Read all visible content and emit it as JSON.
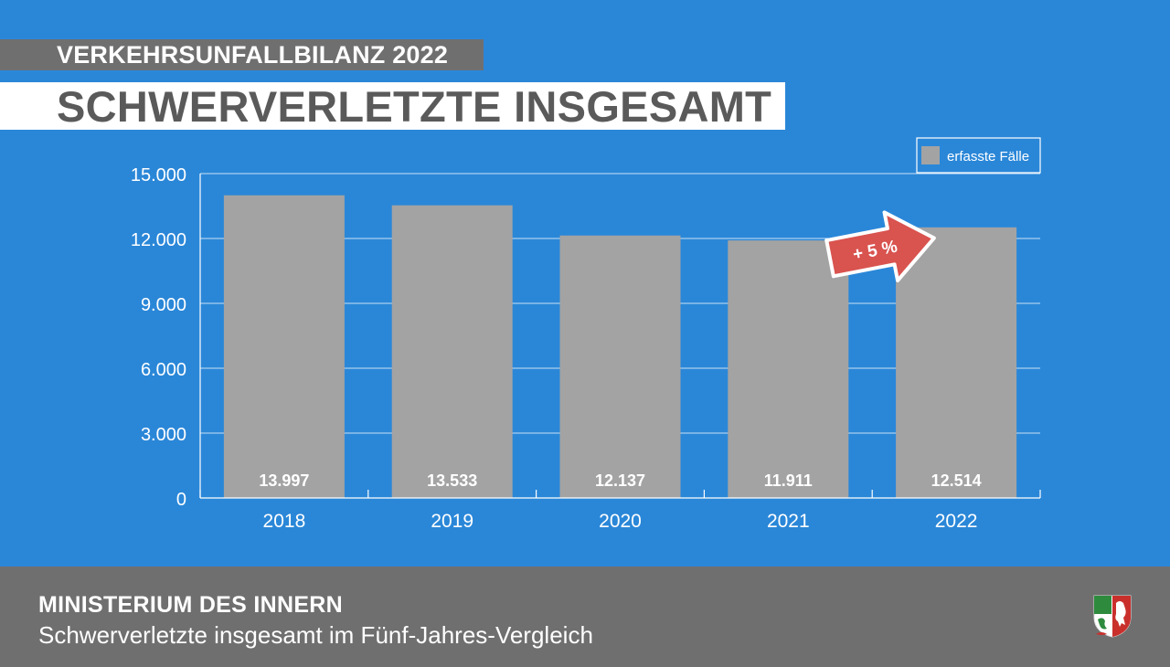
{
  "header": {
    "supertitle": "VERKEHRSUNFALLBILANZ 2022",
    "title": "SCHWERVERLETZTE INSGESAMT"
  },
  "footer": {
    "title": "MINISTERIUM DES INNERN",
    "subtitle": "Schwerverletzte insgesamt im Fünf-Jahres-Vergleich",
    "crest_icon": "nrw-coat-of-arms-icon"
  },
  "colors": {
    "background": "#2a87d8",
    "bar": "#a3a3a3",
    "band": "#6f6f6f",
    "arrow": "#d9534f"
  },
  "chart_data": {
    "type": "bar",
    "categories": [
      "2018",
      "2019",
      "2020",
      "2021",
      "2022"
    ],
    "series": [
      {
        "name": "erfasste Fälle",
        "values": [
          13997,
          13533,
          12137,
          11911,
          12514
        ]
      }
    ],
    "value_labels": [
      "13.997",
      "13.533",
      "12.137",
      "11.911",
      "12.514"
    ],
    "yticks": [
      0,
      3000,
      6000,
      9000,
      12000,
      15000
    ],
    "ytick_labels": [
      "0",
      "3.000",
      "6.000",
      "9.000",
      "12.000",
      "15.000"
    ],
    "ylim": [
      0,
      15000
    ],
    "grid": true,
    "legend": {
      "label": "erfasste Fälle",
      "placement": "top-right"
    },
    "annotation": {
      "text": "+ 5 %",
      "from_category": "2021",
      "to_category": "2022"
    }
  }
}
